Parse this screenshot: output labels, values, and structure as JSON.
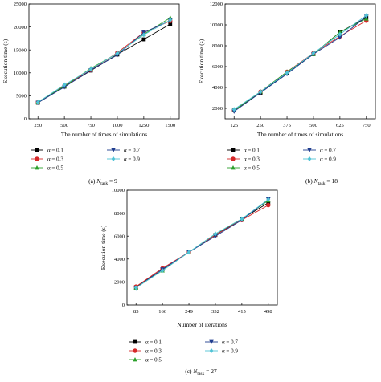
{
  "series_colors": {
    "α = 0.1": "#000000",
    "α = 0.3": "#d62728",
    "α = 0.5": "#2ca02c",
    "α = 0.7": "#1f3d8f",
    "α = 0.9": "#4fc3d6"
  },
  "series_markers": {
    "α = 0.1": "square",
    "α = 0.3": "circle",
    "α = 0.5": "triangle-up",
    "α = 0.7": "triangle-down",
    "α = 0.9": "diamond"
  },
  "legend_order": [
    "α = 0.1",
    "α = 0.7",
    "α = 0.3",
    "α = 0.9",
    "α = 0.5"
  ],
  "chart_data": [
    {
      "type": "line",
      "caption_prefix": "(a)",
      "caption_var": "N",
      "caption_sub": "task",
      "caption_suffix": " = 9",
      "xlabel": "The number of times of simulations",
      "ylabel": "Execution time (s)",
      "x": [
        250,
        500,
        750,
        1000,
        1250,
        1500
      ],
      "xlim": [
        250,
        1500
      ],
      "ylim": [
        0,
        25000
      ],
      "yticks": [
        0,
        5000,
        10000,
        15000,
        20000,
        25000
      ],
      "grid": false,
      "legend_placement": "bottom",
      "series": [
        {
          "name": "α = 0.1",
          "values": [
            3500,
            7000,
            10500,
            14000,
            17300,
            20600
          ]
        },
        {
          "name": "α = 0.3",
          "values": [
            3600,
            7200,
            10600,
            14400,
            18800,
            21300
          ]
        },
        {
          "name": "α = 0.5",
          "values": [
            3700,
            7100,
            11000,
            14200,
            18400,
            22000
          ]
        },
        {
          "name": "α = 0.7",
          "values": [
            3500,
            6900,
            10600,
            13900,
            18800,
            21400
          ]
        },
        {
          "name": "α = 0.9",
          "values": [
            3600,
            7400,
            10800,
            14300,
            18300,
            21500
          ]
        }
      ]
    },
    {
      "type": "line",
      "caption_prefix": "(b)",
      "caption_var": "N",
      "caption_sub": "task",
      "caption_suffix": " = 18",
      "xlabel": "The number of times of simulations",
      "ylabel": "Execution time (s)",
      "x": [
        125,
        250,
        375,
        500,
        625,
        750
      ],
      "xlim": [
        125,
        750
      ],
      "ylim": [
        1000,
        12000
      ],
      "yticks": [
        2000,
        4000,
        6000,
        8000,
        10000,
        12000
      ],
      "grid": false,
      "legend_placement": "bottom",
      "series": [
        {
          "name": "α = 0.1",
          "values": [
            1800,
            3500,
            5400,
            7200,
            9300,
            10700
          ]
        },
        {
          "name": "α = 0.3",
          "values": [
            1800,
            3600,
            5500,
            7300,
            8900,
            10400
          ]
        },
        {
          "name": "α = 0.5",
          "values": [
            1800,
            3600,
            5500,
            7200,
            9300,
            10600
          ]
        },
        {
          "name": "α = 0.7",
          "values": [
            1700,
            3500,
            5300,
            7200,
            8800,
            10800
          ]
        },
        {
          "name": "α = 0.9",
          "values": [
            1900,
            3600,
            5400,
            7300,
            9100,
            10900
          ]
        }
      ]
    },
    {
      "type": "line",
      "caption_prefix": "(c)",
      "caption_var": "N",
      "caption_sub": "task",
      "caption_suffix": " = 27",
      "xlabel": "Number of iterations",
      "ylabel": "Execution time (s)",
      "x": [
        83,
        166,
        249,
        332,
        415,
        498
      ],
      "xlim": [
        83,
        498
      ],
      "ylim": [
        0,
        10000
      ],
      "yticks": [
        0,
        2000,
        4000,
        6000,
        8000,
        10000
      ],
      "grid": false,
      "legend_placement": "bottom",
      "series": [
        {
          "name": "α = 0.1",
          "values": [
            1550,
            3100,
            4600,
            6100,
            7500,
            8900
          ]
        },
        {
          "name": "α = 0.3",
          "values": [
            1600,
            3200,
            4600,
            6100,
            7400,
            8700
          ]
        },
        {
          "name": "α = 0.5",
          "values": [
            1500,
            3000,
            4600,
            6200,
            7500,
            9100
          ]
        },
        {
          "name": "α = 0.7",
          "values": [
            1500,
            3100,
            4600,
            6000,
            7400,
            9200
          ]
        },
        {
          "name": "α = 0.9",
          "values": [
            1500,
            3000,
            4600,
            6200,
            7500,
            9200
          ]
        }
      ]
    }
  ]
}
